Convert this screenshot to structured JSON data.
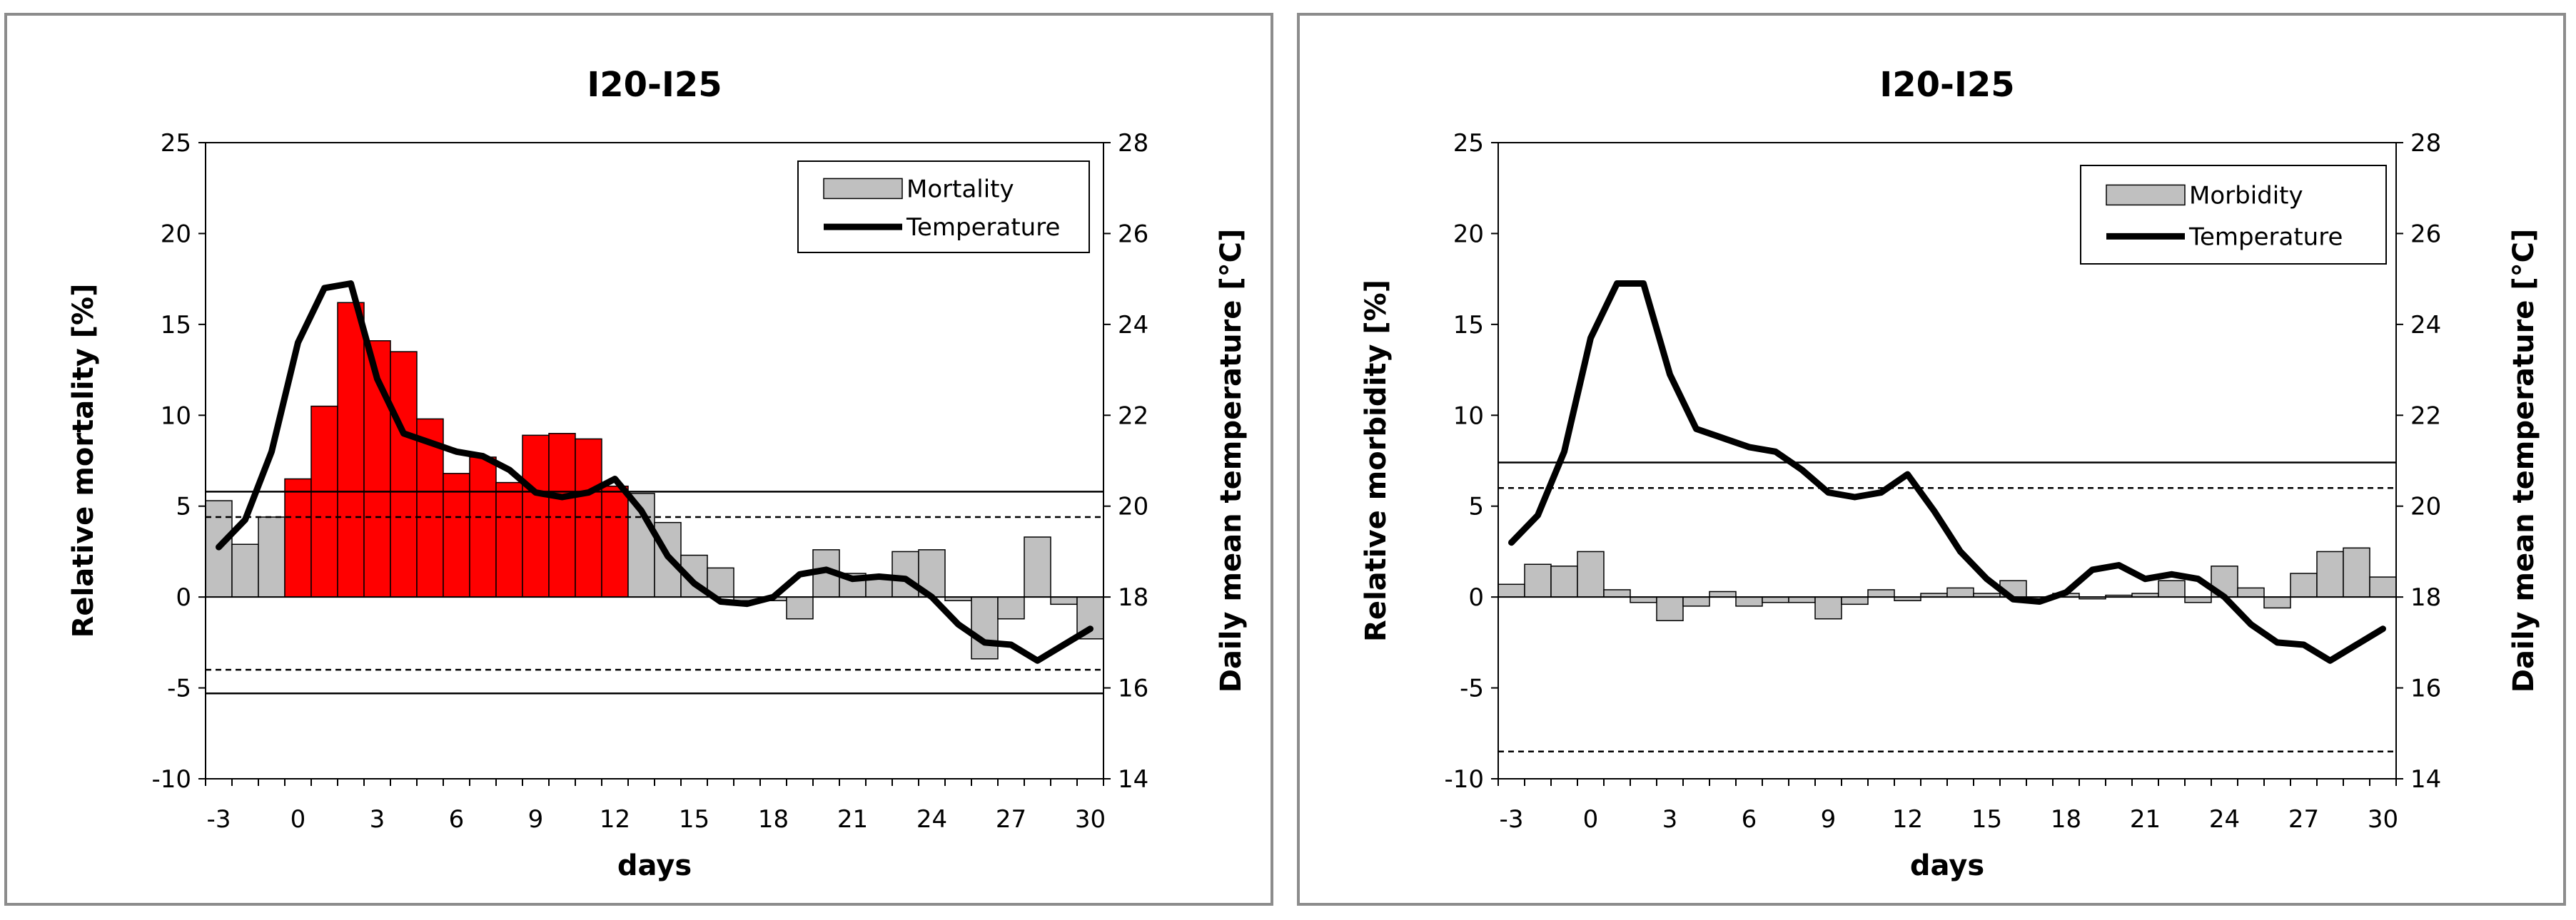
{
  "chart_data": [
    {
      "type": "bar",
      "title": "I20-I25",
      "xlabel": "days",
      "ylabel": "Relative mortality [%]",
      "y2label": "Daily mean temperature [°C]",
      "ylim": [
        -10,
        25
      ],
      "y2lim": [
        14,
        28
      ],
      "yticks": [
        "25",
        "20",
        "15",
        "10",
        "5",
        "0",
        "-5",
        "-10"
      ],
      "y2ticks": [
        "28",
        "26",
        "24",
        "22",
        "20",
        "18",
        "16",
        "14"
      ],
      "xticks": [
        "-3",
        "0",
        "3",
        "6",
        "9",
        "12",
        "15",
        "18",
        "21",
        "24",
        "27",
        "30"
      ],
      "days": [
        -3,
        -2,
        -1,
        0,
        1,
        2,
        3,
        4,
        5,
        6,
        7,
        8,
        9,
        10,
        11,
        12,
        13,
        14,
        15,
        16,
        17,
        18,
        19,
        20,
        21,
        22,
        23,
        24,
        25,
        26,
        27,
        28,
        29,
        30
      ],
      "legend": [
        "Mortality",
        "Temperature"
      ],
      "legend_position": "top-right",
      "series": [
        {
          "name": "Mortality",
          "type": "bar",
          "values": [
            5.3,
            2.9,
            4.4,
            6.5,
            10.5,
            16.2,
            14.1,
            13.5,
            9.8,
            6.8,
            7.7,
            6.3,
            8.9,
            9.0,
            8.7,
            6.1,
            5.7,
            4.1,
            2.3,
            1.6,
            -0.2,
            -0.2,
            -1.2,
            2.6,
            1.3,
            1.0,
            2.5,
            2.6,
            -0.2,
            -3.4,
            -1.2,
            3.3,
            -0.4,
            -2.3
          ],
          "highlight_color": "#ff0000",
          "base_color": "#c0c0c0",
          "highlighted_days": [
            0,
            1,
            2,
            3,
            4,
            5,
            6,
            7,
            8,
            9,
            10,
            11,
            12
          ]
        },
        {
          "name": "Temperature",
          "type": "line",
          "axis": "right",
          "color": "#000000",
          "values": [
            19.1,
            19.7,
            21.2,
            23.6,
            24.8,
            24.9,
            22.8,
            21.6,
            21.4,
            21.2,
            21.1,
            20.8,
            20.3,
            20.2,
            20.3,
            20.6,
            19.9,
            18.9,
            18.3,
            17.9,
            17.85,
            18.0,
            18.5,
            18.6,
            18.4,
            18.45,
            18.4,
            18.0,
            17.4,
            17.0,
            16.95,
            16.6,
            16.95,
            17.3
          ]
        }
      ],
      "threshold_lines": {
        "solid": [
          5.8,
          -5.3
        ],
        "dashed": [
          4.4,
          -4.0
        ]
      },
      "grid": false
    },
    {
      "type": "bar",
      "title": "I20-I25",
      "xlabel": "days",
      "ylabel": "Relative morbidity [%]",
      "y2label": "Daily mean temperature [°C]",
      "ylim": [
        -10,
        25
      ],
      "y2lim": [
        14,
        28
      ],
      "yticks": [
        "25",
        "20",
        "15",
        "10",
        "5",
        "0",
        "-5",
        "-10"
      ],
      "y2ticks": [
        "28",
        "26",
        "24",
        "22",
        "20",
        "18",
        "16",
        "14"
      ],
      "xticks": [
        "-3",
        "0",
        "3",
        "6",
        "9",
        "12",
        "15",
        "18",
        "21",
        "24",
        "27",
        "30"
      ],
      "days": [
        -3,
        -2,
        -1,
        0,
        1,
        2,
        3,
        4,
        5,
        6,
        7,
        8,
        9,
        10,
        11,
        12,
        13,
        14,
        15,
        16,
        17,
        18,
        19,
        20,
        21,
        22,
        23,
        24,
        25,
        26,
        27,
        28,
        29,
        30
      ],
      "legend": [
        "Morbidity",
        "Temperature"
      ],
      "legend_position": "top-right",
      "series": [
        {
          "name": "Morbidity",
          "type": "bar",
          "values": [
            0.7,
            1.8,
            1.7,
            2.5,
            0.4,
            -0.3,
            -1.3,
            -0.5,
            0.3,
            -0.5,
            -0.3,
            -0.3,
            -1.2,
            -0.4,
            0.4,
            -0.2,
            0.2,
            0.5,
            0.2,
            0.9,
            -0.1,
            0.2,
            -0.1,
            0.1,
            0.2,
            0.9,
            -0.3,
            1.7,
            0.5,
            -0.6,
            1.3,
            2.5,
            2.7,
            1.1
          ],
          "base_color": "#c0c0c0"
        },
        {
          "name": "Temperature",
          "type": "line",
          "axis": "right",
          "color": "#000000",
          "values": [
            19.2,
            19.8,
            21.2,
            23.7,
            24.9,
            24.9,
            22.9,
            21.7,
            21.5,
            21.3,
            21.2,
            20.8,
            20.3,
            20.2,
            20.3,
            20.7,
            19.9,
            19.0,
            18.4,
            17.95,
            17.9,
            18.1,
            18.6,
            18.7,
            18.4,
            18.5,
            18.4,
            18.0,
            17.4,
            17.0,
            16.95,
            16.6,
            16.95,
            17.3
          ]
        }
      ],
      "threshold_lines": {
        "solid": [
          7.4
        ],
        "dashed": [
          6.0,
          -8.5
        ]
      },
      "grid": false
    }
  ]
}
